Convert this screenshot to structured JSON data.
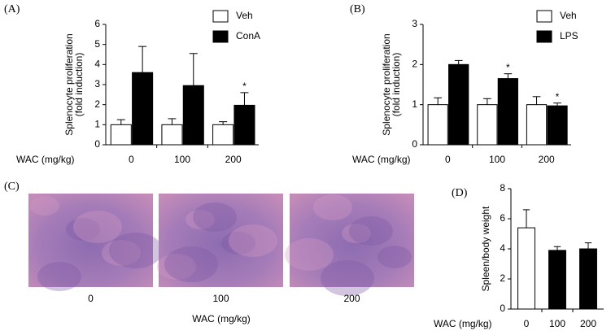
{
  "chart_data": [
    {
      "type": "bar",
      "label": "(A)",
      "ylabel": [
        "Splenocyte proliferation",
        "(fold induction)"
      ],
      "xlabel": "WAC (mg/kg)",
      "categories": [
        "0",
        "100",
        "200"
      ],
      "series": [
        {
          "name": "Veh",
          "color": "#ffffff",
          "values": [
            1,
            1,
            1
          ],
          "errors": [
            0.25,
            0.3,
            0.15
          ],
          "significance": [
            null,
            null,
            null
          ]
        },
        {
          "name": "ConA",
          "color": "#000000",
          "values": [
            3.6,
            2.95,
            1.97
          ],
          "errors": [
            1.3,
            1.6,
            0.63
          ],
          "significance": [
            null,
            null,
            "*"
          ]
        }
      ],
      "ylim": [
        0,
        6
      ],
      "yticks": [
        0,
        1,
        2,
        3,
        4,
        5,
        6
      ],
      "legend": "upper right"
    },
    {
      "type": "bar",
      "label": "(B)",
      "ylabel": [
        "Splenocyte proliferation",
        "(fold induction)"
      ],
      "xlabel": "WAC (mg/kg)",
      "categories": [
        "0",
        "100",
        "200"
      ],
      "series": [
        {
          "name": "Veh",
          "color": "#ffffff",
          "values": [
            1,
            1,
            1
          ],
          "errors": [
            0.17,
            0.15,
            0.2
          ],
          "significance": [
            null,
            null,
            null
          ]
        },
        {
          "name": "LPS",
          "color": "#000000",
          "values": [
            2.0,
            1.65,
            0.97
          ],
          "errors": [
            0.1,
            0.12,
            0.07
          ],
          "significance": [
            null,
            "*",
            "*"
          ]
        }
      ],
      "ylim": [
        0,
        3
      ],
      "yticks": [
        0,
        1,
        2,
        3
      ],
      "legend": "upper right"
    },
    {
      "type": "image",
      "label": "(C)",
      "xlabel": "WAC (mg/kg)",
      "categories": [
        "0",
        "100",
        "200"
      ]
    },
    {
      "type": "bar",
      "label": "(D)",
      "ylabel": [
        "Spleen/body weight"
      ],
      "xlabel": "WAC (mg/kg)",
      "categories": [
        "0",
        "100",
        "200"
      ],
      "values": [
        5.4,
        3.9,
        4.0
      ],
      "errors": [
        1.2,
        0.25,
        0.4
      ],
      "colors": [
        "#ffffff",
        "#000000",
        "#000000"
      ],
      "ylim": [
        0,
        8
      ],
      "yticks": [
        0,
        2,
        4,
        6,
        8
      ]
    }
  ]
}
